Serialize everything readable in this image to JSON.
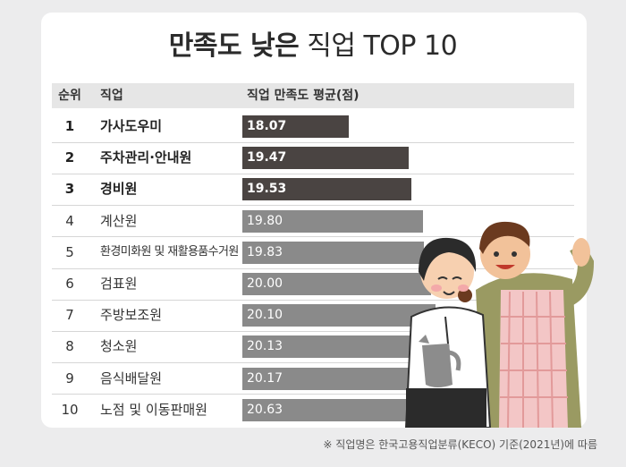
{
  "title": {
    "bold": "만족도 낮은",
    "light": "직업 TOP 10"
  },
  "headers": {
    "rank": "순위",
    "job": "직업",
    "value": "직업 만족도 평균(점)"
  },
  "colors": {
    "top3": "#4a4442",
    "rest": "#8a8a8a",
    "header_bg": "#e6e6e6"
  },
  "footnote": "※ 직업명은 한국고용직업분류(KECO) 기준(2021년)에 따름",
  "chart_data": {
    "type": "bar",
    "orientation": "horizontal",
    "title": "만족도 낮은 직업 TOP 10",
    "ylabel": "직업 만족도 평균(점)",
    "ranks": [
      "1",
      "2",
      "3",
      "4",
      "5",
      "6",
      "7",
      "8",
      "9",
      "10"
    ],
    "categories": [
      "가사도우미",
      "주차관리·안내원",
      "경비원",
      "계산원",
      "환경미화원 및 재활용품수거원",
      "검표원",
      "주방보조원",
      "청소원",
      "음식배달원",
      "노점 및 이동판매원"
    ],
    "values": [
      18.07,
      19.47,
      19.53,
      19.8,
      19.83,
      20.0,
      20.1,
      20.13,
      20.17,
      20.63
    ],
    "value_labels": [
      "18.07",
      "19.47",
      "19.53",
      "19.80",
      "19.83",
      "20.00",
      "20.10",
      "20.13",
      "20.17",
      "20.63"
    ],
    "highlighted_top": 3
  },
  "illustration": {
    "icon": "couple-illustration"
  }
}
